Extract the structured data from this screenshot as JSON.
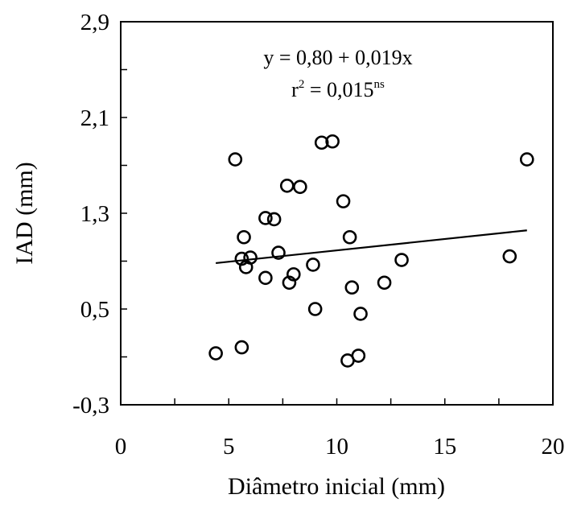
{
  "chart_data": {
    "type": "scatter",
    "xlabel": "Diâmetro inicial (mm)",
    "ylabel": "IAD (mm)",
    "xlim": [
      0,
      20
    ],
    "ylim": [
      -0.3,
      2.9
    ],
    "x_ticks": [
      "0",
      "5",
      "10",
      "15",
      "20"
    ],
    "y_ticks": [
      "-0,3",
      "0,5",
      "1,3",
      "2,1",
      "2,9"
    ],
    "equation": "y = 0,80 +  0,019x",
    "r2_prefix": "r",
    "r2_exp": "2",
    "r2_value": " = 0,015",
    "r2_sig": "ns",
    "fit_line": {
      "intercept": 0.8,
      "slope": 0.019,
      "x_start": 4.4,
      "x_end": 18.8
    },
    "points": [
      {
        "x": 4.4,
        "y": 0.13
      },
      {
        "x": 5.3,
        "y": 1.75
      },
      {
        "x": 5.6,
        "y": 0.18
      },
      {
        "x": 5.6,
        "y": 0.92
      },
      {
        "x": 5.7,
        "y": 1.1
      },
      {
        "x": 5.8,
        "y": 0.85
      },
      {
        "x": 6.0,
        "y": 0.93
      },
      {
        "x": 6.7,
        "y": 1.26
      },
      {
        "x": 6.7,
        "y": 0.76
      },
      {
        "x": 7.1,
        "y": 1.25
      },
      {
        "x": 7.3,
        "y": 0.97
      },
      {
        "x": 7.7,
        "y": 1.53
      },
      {
        "x": 7.8,
        "y": 0.72
      },
      {
        "x": 8.0,
        "y": 0.79
      },
      {
        "x": 8.3,
        "y": 1.52
      },
      {
        "x": 8.9,
        "y": 0.87
      },
      {
        "x": 9.0,
        "y": 0.5
      },
      {
        "x": 9.3,
        "y": 1.89
      },
      {
        "x": 9.8,
        "y": 1.9
      },
      {
        "x": 10.3,
        "y": 1.4
      },
      {
        "x": 10.5,
        "y": 0.07
      },
      {
        "x": 10.6,
        "y": 1.1
      },
      {
        "x": 10.7,
        "y": 0.68
      },
      {
        "x": 11.0,
        "y": 0.11
      },
      {
        "x": 11.1,
        "y": 0.46
      },
      {
        "x": 12.2,
        "y": 0.72
      },
      {
        "x": 13.0,
        "y": 0.91
      },
      {
        "x": 18.0,
        "y": 0.94
      },
      {
        "x": 18.8,
        "y": 1.75
      }
    ]
  }
}
